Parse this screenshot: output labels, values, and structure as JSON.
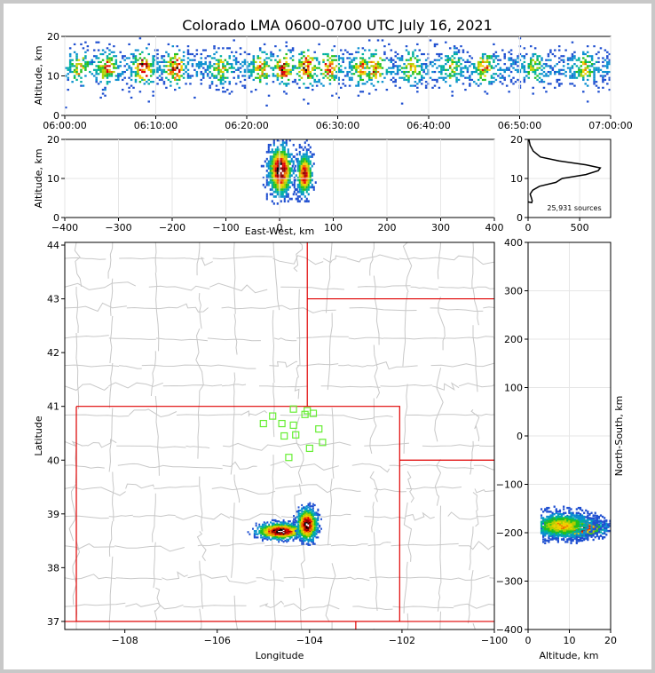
{
  "chart_data": {
    "title": "Colorado LMA 0600-0700 UTC July 16, 2021",
    "colormap": [
      "#1f4fd0",
      "#0a8fd0",
      "#00b0a0",
      "#20c020",
      "#b0d000",
      "#f0d000",
      "#f07000",
      "#e00000",
      "#900000",
      "#000000",
      "#ffffff"
    ],
    "time_height": {
      "type": "heatmap",
      "ylabel": "Altitude, km",
      "ylim": [
        0,
        20
      ],
      "yticks": [
        "0",
        "10",
        "20"
      ],
      "xlim_minutes": [
        0,
        60
      ],
      "xtick_labels": [
        "06:00:00",
        "06:10:00",
        "06:20:00",
        "06:30:00",
        "06:40:00",
        "06:50:00",
        "07:00:00"
      ],
      "bursts": [
        {
          "t": 1.5,
          "intensity": 0.6
        },
        {
          "t": 4.5,
          "intensity": 0.7
        },
        {
          "t": 8.5,
          "intensity": 0.9
        },
        {
          "t": 12.0,
          "intensity": 0.85
        },
        {
          "t": 17.0,
          "intensity": 0.5
        },
        {
          "t": 21.5,
          "intensity": 0.6
        },
        {
          "t": 24.0,
          "intensity": 0.8
        },
        {
          "t": 26.5,
          "intensity": 0.9
        },
        {
          "t": 29.0,
          "intensity": 0.75
        },
        {
          "t": 32.5,
          "intensity": 0.6
        },
        {
          "t": 34.0,
          "intensity": 0.75
        },
        {
          "t": 38.0,
          "intensity": 0.55
        },
        {
          "t": 42.5,
          "intensity": 0.5
        },
        {
          "t": 46.0,
          "intensity": 0.6
        },
        {
          "t": 51.5,
          "intensity": 0.4
        },
        {
          "t": 57.0,
          "intensity": 0.5
        }
      ]
    },
    "ew_height": {
      "type": "heatmap",
      "xlabel": "East-West, km",
      "ylabel": "Altitude, km",
      "xlim": [
        -400,
        400
      ],
      "ylim": [
        0,
        20
      ],
      "xticks": [
        "−400",
        "−300",
        "−200",
        "−100",
        "0",
        "100",
        "200",
        "300",
        "400"
      ],
      "yticks": [
        "0",
        "10",
        "20"
      ],
      "cells": [
        {
          "x": 0,
          "z": 12,
          "sx": 12,
          "sz": 3.5
        },
        {
          "x": 45,
          "z": 11,
          "sx": 8,
          "sz": 3.0
        }
      ]
    },
    "alt_histogram": {
      "type": "line",
      "xlim": [
        0,
        800
      ],
      "ylim": [
        0,
        20
      ],
      "xticks": [
        "0",
        "500"
      ],
      "yticks": [
        "0",
        "10",
        "20"
      ],
      "annotation": "25,931 sources",
      "points": [
        [
          0,
          4
        ],
        [
          35,
          3.8
        ],
        [
          40,
          4.3
        ],
        [
          30,
          5.2
        ],
        [
          20,
          6
        ],
        [
          45,
          7
        ],
        [
          110,
          8
        ],
        [
          270,
          9
        ],
        [
          330,
          10
        ],
        [
          560,
          11
        ],
        [
          680,
          12
        ],
        [
          700,
          12.7
        ],
        [
          560,
          13.5
        ],
        [
          300,
          14.5
        ],
        [
          120,
          15.5
        ],
        [
          50,
          17
        ],
        [
          20,
          18.5
        ],
        [
          8,
          20
        ]
      ]
    },
    "map": {
      "type": "scatter",
      "xlabel": "Longitude",
      "ylabel": "Latitude",
      "xlim": [
        -109.3,
        -100
      ],
      "ylim": [
        36.85,
        44.05
      ],
      "xticks": [
        "−108",
        "−106",
        "−104",
        "−102",
        "−100"
      ],
      "yticks": [
        "37",
        "38",
        "39",
        "40",
        "41",
        "42",
        "43",
        "44"
      ],
      "stations": [
        [
          -104.35,
          40.95
        ],
        [
          -104.8,
          40.82
        ],
        [
          -104.05,
          40.92
        ],
        [
          -104.1,
          40.85
        ],
        [
          -103.92,
          40.87
        ],
        [
          -105.0,
          40.68
        ],
        [
          -104.6,
          40.68
        ],
        [
          -104.35,
          40.65
        ],
        [
          -103.8,
          40.58
        ],
        [
          -104.55,
          40.45
        ],
        [
          -104.3,
          40.47
        ],
        [
          -103.72,
          40.33
        ],
        [
          -104.0,
          40.22
        ],
        [
          -104.45,
          40.05
        ]
      ],
      "cells": [
        {
          "lon": -104.65,
          "lat": 38.68,
          "slon": 0.28,
          "slat": 0.08
        },
        {
          "lon": -104.07,
          "lat": 38.8,
          "slon": 0.12,
          "slat": 0.16
        }
      ]
    },
    "ns_height": {
      "type": "heatmap",
      "xlabel": "Altitude, km",
      "ylabel": "North-South, km",
      "xlim": [
        0,
        20
      ],
      "ylim": [
        -400,
        400
      ],
      "xticks": [
        "0",
        "10",
        "20"
      ],
      "yticks": [
        "400",
        "300",
        "200",
        "100",
        "0",
        "−100",
        "−200",
        "−300",
        "−400"
      ],
      "cells": [
        {
          "z": 12,
          "y": -190,
          "sz": 3.5,
          "sy": 10
        },
        {
          "z": 8,
          "y": -185,
          "sz": 4,
          "sy": 14
        }
      ]
    }
  }
}
